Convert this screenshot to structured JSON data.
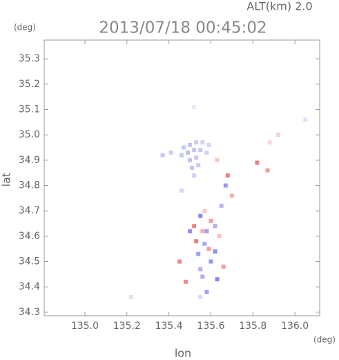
{
  "chart_data": {
    "type": "scatter",
    "title": "2013/07/18 00:45:02",
    "subtitle": "ALT(km) 2.0",
    "x_label": "lon",
    "y_label": "lat",
    "x_unit": "(deg)",
    "y_unit": "(deg)",
    "xlim": [
      134.806,
      136.118
    ],
    "ylim": [
      34.286,
      35.374
    ],
    "xticks": [
      {
        "value": 135.0,
        "label": "135.0"
      },
      135.2,
      135.4,
      135.6,
      135.8,
      {
        "value": 136.0,
        "label": "136.0"
      }
    ],
    "yticks": [
      34.3,
      34.4,
      34.5,
      34.6,
      34.7,
      34.8,
      34.9,
      {
        "value": 35.0,
        "label": "35.0"
      },
      35.1,
      35.2,
      35.3
    ],
    "x": [
      135.47,
      135.5,
      135.53,
      135.56,
      135.59,
      135.46,
      135.49,
      135.52,
      135.55,
      135.58,
      135.5,
      135.53,
      135.51,
      135.54,
      135.52,
      135.37,
      135.41,
      135.63,
      135.82,
      135.87,
      135.52,
      135.56,
      135.6,
      135.64,
      135.53,
      135.66,
      135.45,
      135.48,
      135.7,
      135.68,
      135.57,
      135.59,
      135.55,
      135.58,
      135.62,
      135.5,
      135.57,
      135.6,
      135.55,
      135.63,
      135.58,
      135.67,
      135.65,
      135.54,
      135.62,
      135.56,
      135.88,
      136.05,
      135.92,
      135.55,
      135.22,
      135.52,
      135.46
    ],
    "values": [
      34.95,
      34.96,
      34.97,
      34.97,
      34.96,
      34.92,
      34.93,
      34.94,
      34.94,
      34.93,
      34.9,
      34.91,
      34.87,
      34.88,
      34.84,
      34.92,
      34.93,
      34.9,
      34.89,
      34.86,
      34.64,
      34.62,
      34.66,
      34.6,
      34.58,
      34.48,
      34.5,
      34.42,
      34.76,
      34.84,
      34.7,
      34.55,
      34.68,
      34.62,
      34.64,
      34.62,
      34.57,
      34.5,
      34.47,
      34.43,
      34.38,
      34.8,
      34.72,
      34.53,
      34.54,
      34.44,
      34.97,
      35.06,
      35.0,
      34.36,
      34.36,
      35.11,
      34.78
    ],
    "colors": [
      "#c8c8f4",
      "#c4c4f2",
      "#ccccf4",
      "#d0d0f6",
      "#d4d4f6",
      "#c8c8f4",
      "#c0c0f2",
      "#c4c4f2",
      "#c8c8f4",
      "#d0d0f6",
      "#c0c0f0",
      "#c8c8f4",
      "#c4c4f2",
      "#ccccf4",
      "#d0d0f6",
      "#c8c8f4",
      "#ccccf4",
      "#f6c8c8",
      "#f08080",
      "#f0a0a0",
      "#f08888",
      "#f4b0b0",
      "#f0a0a0",
      "#f8c0c0",
      "#e88080",
      "#f0a0a0",
      "#f08888",
      "#f09090",
      "#f4b0b0",
      "#f08080",
      "#f8c8c8",
      "#f0a0a0",
      "#8888f0",
      "#a0a0f4",
      "#b0b0f6",
      "#9090f0",
      "#a8a8f4",
      "#9898f2",
      "#b0b0f6",
      "#8888f0",
      "#a0a0f4",
      "#9898f2",
      "#b8b8f6",
      "#a0a0f4",
      "#9090f0",
      "#b0b0f6",
      "#f8d8d8",
      "#e0e0f8",
      "#f8d0d0",
      "#d8d8f8",
      "#e0e0f0",
      "#e8e8f8",
      "#d8d8f6"
    ],
    "grid": false
  }
}
